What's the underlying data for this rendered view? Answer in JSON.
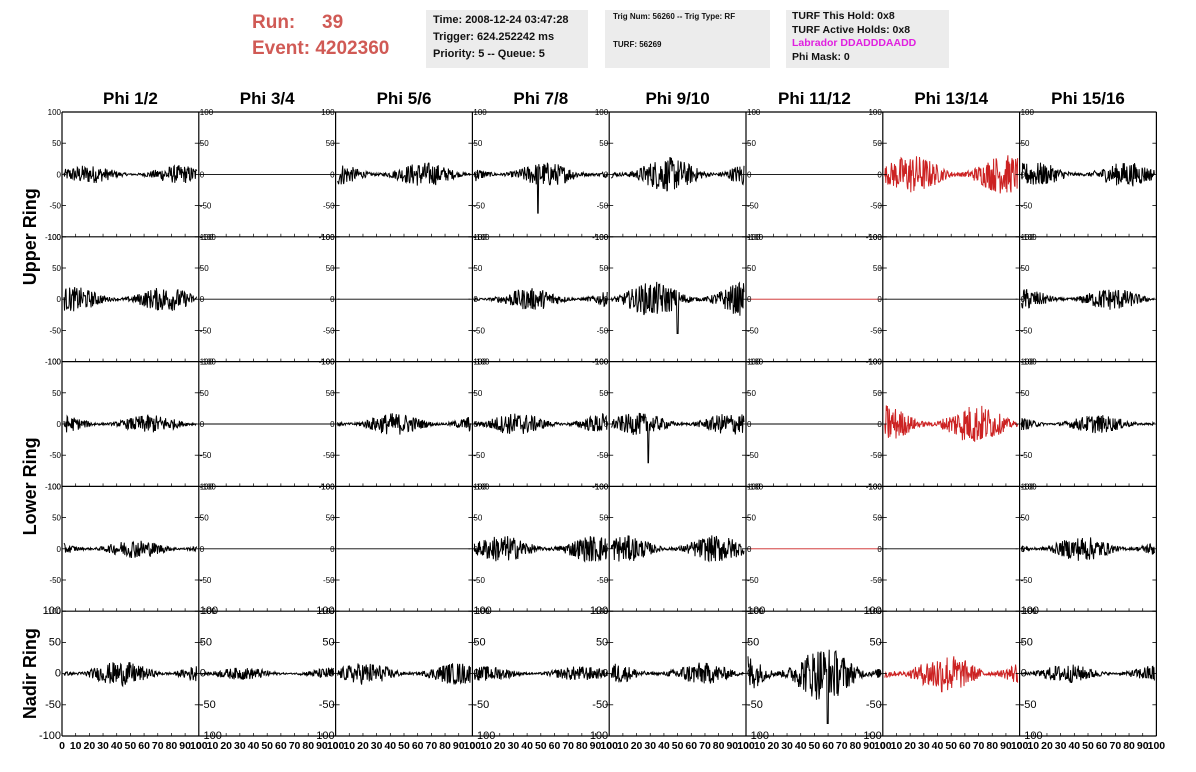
{
  "header": {
    "run_label": "Run:",
    "run_value": "39",
    "event_label": "Event:",
    "event_value": "4202360",
    "time": "Time: 2008-12-24 03:47:28",
    "trigger": "Trigger: 624.252242 ms",
    "priority": "Priority: 5 -- Queue: 5",
    "trig_num": "Trig Num: 56260 -- Trig Type: RF",
    "turf": "TURF: 56269",
    "turf_hold": "TURF This Hold: 0x8",
    "turf_active": "TURF Active Holds: 0x8",
    "labrador": "Labrador DDADDDAADD",
    "phi_mask": "Phi Mask: 0"
  },
  "colors": {
    "run_text": "#d05a55",
    "info_bg": "#ececec",
    "labrador": "#e020e0",
    "trace": "#000000",
    "highlight": "#cc2222"
  },
  "chart_data": {
    "type": "line",
    "columns": [
      "Phi 1/2",
      "Phi 3/4",
      "Phi 5/6",
      "Phi 7/8",
      "Phi 9/10",
      "Phi 11/12",
      "Phi 13/14",
      "Phi 15/16"
    ],
    "ring_labels": [
      {
        "name": "Upper Ring",
        "rows": [
          0,
          1
        ]
      },
      {
        "name": "Lower Ring",
        "rows": [
          2,
          3
        ]
      },
      {
        "name": "Nadir Ring",
        "rows": [
          4
        ]
      }
    ],
    "ylim": [
      -100,
      100
    ],
    "xlim": [
      0,
      100
    ],
    "y_ticks": [
      -100,
      -50,
      0,
      50,
      100
    ],
    "x_ticks": [
      0,
      10,
      20,
      30,
      40,
      50,
      60,
      70,
      80,
      90,
      100
    ],
    "x_tick_labels": [
      "0",
      "10",
      "20",
      "30",
      "40",
      "50",
      "60",
      "70",
      "80",
      "90",
      "100"
    ],
    "traces": [
      [
        {
          "amp": 15,
          "color": "black"
        },
        {
          "amp": 0,
          "color": "black"
        },
        {
          "amp": 20,
          "color": "black"
        },
        {
          "amp": 20,
          "color": "black",
          "spike": [
            0.48,
            -62
          ]
        },
        {
          "amp": 28,
          "color": "black"
        },
        {
          "amp": 0,
          "color": "black"
        },
        {
          "amp": 32,
          "color": "red"
        },
        {
          "amp": 20,
          "color": "black"
        }
      ],
      [
        {
          "amp": 20,
          "color": "black"
        },
        {
          "amp": 0,
          "color": "black"
        },
        {
          "amp": 0,
          "color": "black"
        },
        {
          "amp": 18,
          "color": "black"
        },
        {
          "amp": 28,
          "color": "black",
          "spike": [
            0.5,
            -55
          ]
        },
        {
          "amp": 0,
          "color": "red"
        },
        {
          "amp": 0,
          "color": "black"
        },
        {
          "amp": 18,
          "color": "black"
        }
      ],
      [
        {
          "amp": 15,
          "color": "black"
        },
        {
          "amp": 0,
          "color": "black"
        },
        {
          "amp": 18,
          "color": "black"
        },
        {
          "amp": 18,
          "color": "black"
        },
        {
          "amp": 18,
          "color": "black",
          "spike": [
            0.28,
            -62
          ]
        },
        {
          "amp": 0,
          "color": "black"
        },
        {
          "amp": 32,
          "color": "red"
        },
        {
          "amp": 15,
          "color": "black"
        }
      ],
      [
        {
          "amp": 15,
          "color": "black"
        },
        {
          "amp": 0,
          "color": "black"
        },
        {
          "amp": 0,
          "color": "black"
        },
        {
          "amp": 22,
          "color": "black"
        },
        {
          "amp": 22,
          "color": "black"
        },
        {
          "amp": 0,
          "color": "red"
        },
        {
          "amp": 0,
          "color": "black"
        },
        {
          "amp": 20,
          "color": "black"
        }
      ],
      [
        {
          "amp": 20,
          "color": "black"
        },
        {
          "amp": 10,
          "color": "black"
        },
        {
          "amp": 18,
          "color": "black"
        },
        {
          "amp": 12,
          "color": "black"
        },
        {
          "amp": 18,
          "color": "black"
        },
        {
          "amp": 45,
          "color": "black",
          "spike": [
            0.6,
            -80
          ]
        },
        {
          "amp": 32,
          "color": "red"
        },
        {
          "amp": 15,
          "color": "black"
        }
      ]
    ]
  }
}
